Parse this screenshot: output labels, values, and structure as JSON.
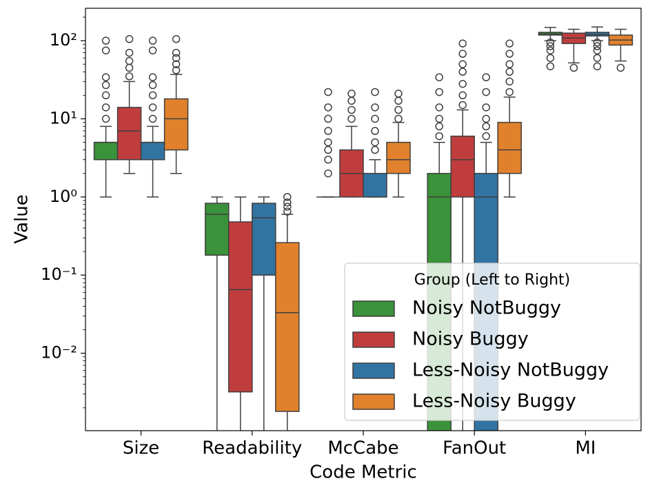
{
  "chart_data": {
    "type": "box",
    "xlabel": "Code Metric",
    "ylabel": "Value",
    "categories": [
      "Size",
      "Readability",
      "McCabe",
      "FanOut",
      "MI"
    ],
    "log_y": true,
    "ylim": [
      0.00102,
      260
    ],
    "yticks": [
      {
        "value": 0.01,
        "label": "10⁻²"
      },
      {
        "value": 0.1,
        "label": "10⁻¹"
      },
      {
        "value": 1,
        "label": "10⁰"
      },
      {
        "value": 10,
        "label": "10¹"
      },
      {
        "value": 100,
        "label": "10²"
      }
    ],
    "legend_title": "Group (Left to Right)",
    "legend_position": "lower right",
    "series": [
      {
        "name": "Noisy NotBuggy",
        "color": "#3a923a",
        "boxes": [
          {
            "whislo": 1,
            "q1": 3,
            "med": 5,
            "q3": 5,
            "whishi": 8,
            "outliers": [
              10,
              14,
              20,
              27,
              34,
              75,
              100
            ]
          },
          {
            "whislo": 0.001,
            "q1": 0.18,
            "med": 0.6,
            "q3": 0.83,
            "whishi": 1,
            "outliers": []
          },
          {
            "whislo": 1,
            "q1": 1,
            "med": 1,
            "q3": 1,
            "whishi": 1,
            "outliers": [
              2,
              3,
              4,
              5,
              7,
              10,
              14,
              22
            ]
          },
          {
            "whislo": 0.001,
            "q1": 0.001,
            "med": 1,
            "q3": 2,
            "whishi": 5,
            "outliers": [
              6,
              8,
              10,
              14,
              22,
              34
            ]
          },
          {
            "whislo": 100,
            "q1": 118,
            "med": 122,
            "q3": 128,
            "whishi": 148,
            "outliers": [
              47,
              60,
              75,
              85,
              95
            ]
          }
        ]
      },
      {
        "name": "Noisy Buggy",
        "color": "#c03d3e",
        "boxes": [
          {
            "whislo": 2,
            "q1": 3,
            "med": 7,
            "q3": 14,
            "whishi": 30,
            "outliers": [
              35,
              45,
              55,
              70,
              105
            ]
          },
          {
            "whislo": 0.001,
            "q1": 0.0032,
            "med": 0.065,
            "q3": 0.48,
            "whishi": 1,
            "outliers": []
          },
          {
            "whislo": 1,
            "q1": 1,
            "med": 2,
            "q3": 4,
            "whishi": 8,
            "outliers": [
              10,
              13,
              17,
              21
            ]
          },
          {
            "whislo": 0.001,
            "q1": 1,
            "med": 3,
            "q3": 6,
            "whishi": 13,
            "outliers": [
              15,
              20,
              28,
              40,
              50,
              68,
              92
            ]
          },
          {
            "whislo": 52,
            "q1": 92,
            "med": 108,
            "q3": 125,
            "whishi": 140,
            "outliers": [
              45
            ]
          }
        ]
      },
      {
        "name": "Less-Noisy NotBuggy",
        "color": "#3274a1",
        "boxes": [
          {
            "whislo": 1,
            "q1": 3,
            "med": 5,
            "q3": 5,
            "whishi": 8,
            "outliers": [
              10,
              14,
              20,
              27,
              34,
              75,
              100
            ]
          },
          {
            "whislo": 0.001,
            "q1": 0.1,
            "med": 0.54,
            "q3": 0.83,
            "whishi": 1,
            "outliers": []
          },
          {
            "whislo": 1,
            "q1": 1,
            "med": 1,
            "q3": 2,
            "whishi": 3,
            "outliers": [
              4,
              5,
              7,
              10,
              14,
              22
            ]
          },
          {
            "whislo": 0.001,
            "q1": 0.001,
            "med": 1,
            "q3": 2,
            "whishi": 5,
            "outliers": [
              6,
              8,
              10,
              14,
              22,
              34
            ]
          },
          {
            "whislo": 100,
            "q1": 115,
            "med": 120,
            "q3": 128,
            "whishi": 150,
            "outliers": [
              47,
              60,
              75,
              85,
              95
            ]
          }
        ]
      },
      {
        "name": "Less-Noisy Buggy",
        "color": "#e1812c",
        "boxes": [
          {
            "whislo": 2,
            "q1": 4,
            "med": 10,
            "q3": 18,
            "whishi": 37,
            "outliers": [
              42,
              50,
              60,
              70,
              105
            ]
          },
          {
            "whislo": 0.001,
            "q1": 0.0018,
            "med": 0.033,
            "q3": 0.26,
            "whishi": 0.6,
            "outliers": [
              0.65,
              0.75,
              0.85,
              1
            ]
          },
          {
            "whislo": 1,
            "q1": 2,
            "med": 3,
            "q3": 5,
            "whishi": 9,
            "outliers": [
              10,
              13,
              17,
              21
            ]
          },
          {
            "whislo": 1,
            "q1": 2,
            "med": 4,
            "q3": 9,
            "whishi": 19,
            "outliers": [
              22,
              30,
              40,
              50,
              68,
              92
            ]
          },
          {
            "whislo": 55,
            "q1": 88,
            "med": 102,
            "q3": 118,
            "whishi": 140,
            "outliers": [
              45
            ]
          }
        ]
      }
    ]
  }
}
